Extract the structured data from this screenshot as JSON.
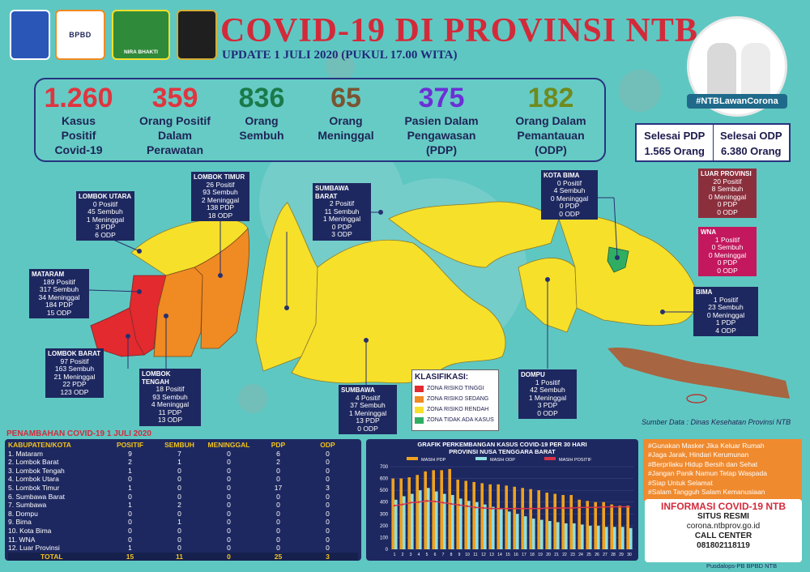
{
  "header": {
    "title": "COVID-19 DI PROVINSI NTB",
    "subtitle": "UPDATE 1 JULI 2020 (PUKUL 17.00 WITA)",
    "logos": [
      "BPBD",
      "NIRA BHAKTI"
    ]
  },
  "stats": [
    {
      "number": "1.260",
      "label": [
        "Kasus",
        "Positif",
        "Covid-19"
      ],
      "color": "#e0353f"
    },
    {
      "number": "359",
      "label": [
        "Orang Positif",
        "Dalam",
        "Perawatan"
      ],
      "color": "#e0353f"
    },
    {
      "number": "836",
      "label": [
        "Orang",
        "Sembuh"
      ],
      "color": "#1a7a4a"
    },
    {
      "number": "65",
      "label": [
        "Orang",
        "Meninggal"
      ],
      "color": "#7a5432"
    },
    {
      "number": "375",
      "label": [
        "Pasien Dalam",
        "Pengawasan",
        "(PDP)"
      ],
      "color": "#6c2fd6"
    },
    {
      "number": "182",
      "label": [
        "Orang Dalam",
        "Pemantauan",
        "(ODP)"
      ],
      "color": "#6f8a1e"
    }
  ],
  "selesai": {
    "pdp_label": "Selesai PDP",
    "pdp_value": "1.565 Orang",
    "odp_label": "Selesai ODP",
    "odp_value": "6.380 Orang"
  },
  "governor_tag": "#NTBLawanCorona",
  "regions": [
    {
      "name": "LOMBOK UTARA",
      "lines": [
        "0 Positif",
        "45 Sembuh",
        "1 Meninggal",
        "3 PDP",
        "6 ODP"
      ]
    },
    {
      "name": "LOMBOK TIMUR",
      "lines": [
        "26 Positif",
        "93 Sembuh",
        "2 Meninggal",
        "138 PDP",
        "18 ODP"
      ]
    },
    {
      "name": "SUMBAWA BARAT",
      "lines": [
        "2 Positif",
        "11 Sembuh",
        "1 Meninggal",
        "0 PDP",
        "3 ODP"
      ]
    },
    {
      "name": "KOTA BIMA",
      "lines": [
        "0 Positif",
        "4 Sembuh",
        "0 Meninggal",
        "0 PDP",
        "0 ODP"
      ]
    },
    {
      "name": "LUAR PROVINSI",
      "lines": [
        "20 Positif",
        "8 Sembuh",
        "0 Meninggal",
        "0 PDP",
        "0 ODP"
      ]
    },
    {
      "name": "WNA",
      "lines": [
        "1 Positif",
        "0 Sembuh",
        "0 Meninggal",
        "0 PDP",
        "0 ODP"
      ]
    },
    {
      "name": "MATARAM",
      "lines": [
        "189 Positif",
        "317 Sembuh",
        "34 Meninggal",
        "184 PDP",
        "15 ODP"
      ]
    },
    {
      "name": "BIMA",
      "lines": [
        "1 Positif",
        "23 Sembuh",
        "0 Meninggal",
        "1 PDP",
        "4 ODP"
      ]
    },
    {
      "name": "LOMBOK BARAT",
      "lines": [
        "97 Positif",
        "163 Sembuh",
        "21 Meninggal",
        "22 PDP",
        "123 ODP"
      ]
    },
    {
      "name": "LOMBOK TENGAH",
      "lines": [
        "18 Positif",
        "93 Sembuh",
        "4 Meninggal",
        "11 PDP",
        "13 ODP"
      ]
    },
    {
      "name": "DOMPU",
      "lines": [
        "1 Positif",
        "42 Sembuh",
        "1 Meninggal",
        "3 PDP",
        "0 ODP"
      ]
    },
    {
      "name": "SUMBAWA",
      "lines": [
        "4 Positif",
        "37 Sembuh",
        "1 Meninggal",
        "13 PDP",
        "0 ODP"
      ]
    }
  ],
  "legend": {
    "title": "KLASIFIKASI:",
    "items": [
      {
        "label": "ZONA RISIKO TINGGI",
        "color": "#e22a2f"
      },
      {
        "label": "ZONA RISIKO SEDANG",
        "color": "#f08a22"
      },
      {
        "label": "ZONA RISIKO RENDAH",
        "color": "#f6e02a"
      },
      {
        "label": "ZONA TIDAK ADA KASUS",
        "color": "#2fae63"
      }
    ]
  },
  "source": "Sumber Data : Dinas Kesehatan Provinsi NTB",
  "penambahan": {
    "title": "PENAMBAHAN COVID-19 1 JULI 2020",
    "headers": [
      "KABUPATEN/KOTA",
      "POSITIF",
      "SEMBUH",
      "MENINGGAL",
      "PDP",
      "ODP"
    ],
    "rows": [
      [
        "1. Mataram",
        "9",
        "7",
        "0",
        "6",
        "0"
      ],
      [
        "2. Lombok Barat",
        "2",
        "1",
        "0",
        "2",
        "0"
      ],
      [
        "3. Lombok Tengah",
        "1",
        "0",
        "0",
        "0",
        "0"
      ],
      [
        "4. Lombok Utara",
        "0",
        "0",
        "0",
        "0",
        "0"
      ],
      [
        "5. Lombok Timur",
        "1",
        "0",
        "0",
        "17",
        "3"
      ],
      [
        "6. Sumbawa Barat",
        "0",
        "0",
        "0",
        "0",
        "0"
      ],
      [
        "7. Sumbawa",
        "1",
        "2",
        "0",
        "0",
        "0"
      ],
      [
        "8. Dompu",
        "0",
        "0",
        "0",
        "0",
        "0"
      ],
      [
        "9. Bima",
        "0",
        "1",
        "0",
        "0",
        "0"
      ],
      [
        "10. Kota Bima",
        "0",
        "0",
        "0",
        "0",
        "0"
      ],
      [
        "11. WNA",
        "0",
        "0",
        "0",
        "0",
        "0"
      ],
      [
        "12. Luar Provinsi",
        "1",
        "0",
        "0",
        "0",
        "0"
      ]
    ],
    "total": [
      "TOTAL",
      "15",
      "11",
      "0",
      "25",
      "3"
    ]
  },
  "chart_data": {
    "type": "bar",
    "title": "GRAFIK PERKEMBANGAN KASUS COVID-19 PER 30 HARI\nPROVINSI NUSA TENGGARA BARAT",
    "categories": [
      "1",
      "2",
      "3",
      "4",
      "5",
      "6",
      "7",
      "8",
      "9",
      "10",
      "11",
      "12",
      "13",
      "14",
      "15",
      "16",
      "17",
      "18",
      "19",
      "20",
      "21",
      "22",
      "23",
      "24",
      "25",
      "26",
      "27",
      "28",
      "29",
      "30"
    ],
    "ylim": [
      0,
      700
    ],
    "yticks": [
      "0",
      "100",
      "200",
      "300",
      "400",
      "500",
      "600",
      "700"
    ],
    "series": [
      {
        "name": "MASIH PDP",
        "color": "#f0a21e",
        "values": [
          600,
          600,
          610,
          630,
          660,
          670,
          670,
          680,
          590,
          580,
          570,
          560,
          550,
          550,
          540,
          530,
          520,
          510,
          500,
          480,
          470,
          460,
          460,
          420,
          410,
          400,
          400,
          380,
          370,
          370
        ]
      },
      {
        "name": "MASIH ODP",
        "color": "#8fe0e0",
        "values": [
          420,
          450,
          470,
          500,
          520,
          490,
          470,
          460,
          430,
          410,
          400,
          380,
          360,
          340,
          320,
          300,
          280,
          260,
          250,
          240,
          230,
          220,
          220,
          210,
          200,
          200,
          190,
          190,
          190,
          180
        ]
      },
      {
        "name": "MASIH POSITIF",
        "color": "#d6334a",
        "values": [
          370,
          380,
          395,
          400,
          410,
          405,
          395,
          385,
          375,
          365,
          355,
          350,
          345,
          345,
          345,
          345,
          345,
          345,
          345,
          350,
          350,
          350,
          350,
          355,
          355,
          355,
          360,
          360,
          360,
          360
        ]
      }
    ]
  },
  "messages": [
    "#Gunakan Masker Jika Keluar Rumah",
    "#Jaga Jarak, Hindari Kerumunan",
    "#Berprilaku Hidup Bersih dan Sehat",
    "#Jangan Panik Namun Tetap Waspada",
    "#Siap Untuk Selamat",
    "#Salam Tangguh Salam Kemanusiaan"
  ],
  "info": {
    "title": "INFORMASI COVID-19 NTB",
    "situs_label": "SITUS RESMI",
    "situs": "corona.ntbprov.go.id",
    "call_label": "CALL CENTER",
    "call": "081802118119"
  },
  "footer": "Pusdalops-PB BPBD NTB"
}
